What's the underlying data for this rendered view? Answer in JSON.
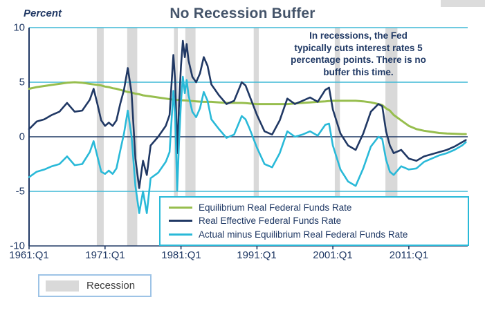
{
  "header": {
    "title": "No Recession Buffer"
  },
  "y_axis": {
    "unit_label": "Percent",
    "tick_labels": [
      "10",
      "5",
      "0",
      "-5",
      "-10"
    ]
  },
  "x_axis": {
    "tick_labels": [
      "1961:Q1",
      "1971:Q1",
      "1981:Q1",
      "1991:Q1",
      "2001:Q1",
      "2011:Q1"
    ]
  },
  "annotation": {
    "text": "In recessions, the Fed\ntypically cuts interest rates 5\npercentage points. There is no\nbuffer this time."
  },
  "recession_legend": {
    "label": "Recession"
  },
  "chart_data": {
    "type": "line",
    "title": "No Recession Buffer",
    "xlabel": "",
    "ylabel": "Percent",
    "xlim": [
      1961,
      2018.75
    ],
    "ylim": [
      -10,
      10
    ],
    "y_ticks": [
      10,
      5,
      0,
      -5,
      -10
    ],
    "grid_values": [
      10,
      5,
      -5
    ],
    "x_ticks": [
      1961,
      1971,
      1981,
      1991,
      2001,
      2011
    ],
    "x_tick_labels": [
      "1961:Q1",
      "1971:Q1",
      "1981:Q1",
      "1991:Q1",
      "2001:Q1",
      "2011:Q1"
    ],
    "legend_position": "inside-lower-right",
    "grid": "horizontal-only",
    "x": [
      1961,
      1962,
      1963,
      1964,
      1965,
      1966,
      1967,
      1968,
      1969,
      1969.5,
      1970,
      1970.5,
      1971,
      1971.5,
      1972,
      1972.5,
      1973,
      1973.5,
      1974,
      1974.5,
      1975,
      1975.5,
      1976,
      1976.5,
      1977,
      1978,
      1979,
      1979.5,
      1980,
      1980.25,
      1980.5,
      1980.75,
      1981,
      1981.25,
      1981.5,
      1981.75,
      1982,
      1982.5,
      1983,
      1983.5,
      1984,
      1984.5,
      1985,
      1986,
      1987,
      1988,
      1989,
      1989.5,
      1990,
      1991,
      1992,
      1993,
      1994,
      1995,
      1996,
      1997,
      1998,
      1999,
      2000,
      2000.5,
      2001,
      2002,
      2003,
      2004,
      2005,
      2006,
      2007,
      2007.5,
      2008,
      2008.5,
      2009,
      2010,
      2011,
      2012,
      2013,
      2014,
      2015,
      2016,
      2017,
      2018,
      2018.5
    ],
    "series": [
      {
        "name": "Equilibrium Real Federal Funds Rate",
        "color": "#97BE4E",
        "stroke_width": 3,
        "values": [
          4.4,
          4.55,
          4.65,
          4.75,
          4.85,
          4.95,
          5.0,
          4.95,
          4.85,
          4.8,
          4.75,
          4.7,
          4.6,
          4.55,
          4.45,
          4.4,
          4.3,
          4.2,
          4.1,
          4.05,
          3.95,
          3.9,
          3.8,
          3.75,
          3.7,
          3.6,
          3.5,
          3.45,
          3.4,
          3.39,
          3.38,
          3.37,
          3.35,
          3.34,
          3.33,
          3.32,
          3.3,
          3.28,
          3.25,
          3.22,
          3.2,
          3.2,
          3.2,
          3.15,
          3.1,
          3.1,
          3.1,
          3.08,
          3.05,
          3.0,
          3.0,
          3.0,
          3.0,
          3.0,
          3.05,
          3.1,
          3.15,
          3.2,
          3.25,
          3.28,
          3.3,
          3.3,
          3.3,
          3.3,
          3.25,
          3.15,
          3.0,
          2.9,
          2.6,
          2.4,
          2.0,
          1.5,
          1.0,
          0.7,
          0.55,
          0.45,
          0.35,
          0.3,
          0.28,
          0.25,
          0.25
        ]
      },
      {
        "name": "Real Effective Federal Funds Rate",
        "color": "#203864",
        "stroke_width": 2.6,
        "values": [
          0.7,
          1.4,
          1.6,
          2.0,
          2.3,
          3.1,
          2.3,
          2.4,
          3.4,
          4.4,
          3.0,
          1.5,
          1.0,
          1.3,
          1.0,
          1.5,
          3.0,
          4.3,
          6.3,
          4.0,
          -2.0,
          -4.7,
          -2.2,
          -3.5,
          -0.8,
          0.0,
          1.0,
          2.0,
          7.5,
          5.0,
          -1.5,
          3.0,
          6.5,
          8.8,
          7.3,
          8.5,
          7.0,
          5.5,
          5.0,
          5.8,
          7.3,
          6.5,
          4.8,
          3.8,
          3.0,
          3.3,
          5.0,
          4.7,
          3.8,
          2.0,
          0.5,
          0.2,
          1.5,
          3.5,
          3.0,
          3.3,
          3.6,
          3.2,
          4.3,
          4.5,
          2.5,
          0.3,
          -0.8,
          -1.2,
          0.3,
          2.3,
          3.0,
          2.8,
          0.5,
          -0.8,
          -1.5,
          -1.2,
          -2.0,
          -2.2,
          -1.8,
          -1.6,
          -1.4,
          -1.2,
          -0.9,
          -0.5,
          -0.3
        ]
      },
      {
        "name": "Actual minus Equilibrium Real Federal Funds Rate",
        "color": "#29B9D8",
        "stroke_width": 2.6,
        "values": [
          -3.7,
          -3.2,
          -3.0,
          -2.7,
          -2.5,
          -1.8,
          -2.6,
          -2.5,
          -1.4,
          -0.4,
          -1.8,
          -3.2,
          -3.4,
          -3.1,
          -3.4,
          -2.9,
          -1.3,
          0.3,
          2.4,
          0.0,
          -4.5,
          -7.0,
          -5.0,
          -7.0,
          -3.8,
          -3.3,
          -2.3,
          -1.4,
          4.2,
          1.7,
          -4.9,
          -0.4,
          3.2,
          5.5,
          4.0,
          5.2,
          3.8,
          2.3,
          1.8,
          2.6,
          4.1,
          3.3,
          1.6,
          0.7,
          -0.1,
          0.2,
          1.9,
          1.6,
          0.8,
          -1.0,
          -2.5,
          -2.8,
          -1.5,
          0.5,
          0.0,
          0.2,
          0.5,
          0.1,
          1.1,
          1.2,
          -0.8,
          -3.0,
          -4.1,
          -4.5,
          -2.9,
          -0.9,
          0.0,
          -0.2,
          -2.1,
          -3.2,
          -3.5,
          -2.7,
          -3.0,
          -2.9,
          -2.3,
          -2.0,
          -1.7,
          -1.5,
          -1.2,
          -0.8,
          -0.5
        ]
      }
    ],
    "recessions": [
      [
        1969.92,
        1970.83
      ],
      [
        1973.92,
        1975.25
      ],
      [
        1980.08,
        1980.58
      ],
      [
        1981.58,
        1982.92
      ],
      [
        1990.58,
        1991.25
      ],
      [
        2001.25,
        2001.92
      ],
      [
        2007.92,
        2009.5
      ]
    ],
    "colors": {
      "grid": "#3FB9D6",
      "axis": "#1F3864",
      "zero_line": "#1F3864",
      "recession": "#D9D9D9",
      "legend_border": "#29B9D8",
      "title": "#44546A",
      "text": "#1F3864"
    },
    "annotation": "In recessions, the Fed typically cuts interest rates 5 percentage points. There is no buffer this time.",
    "recession_label": "Recession"
  }
}
